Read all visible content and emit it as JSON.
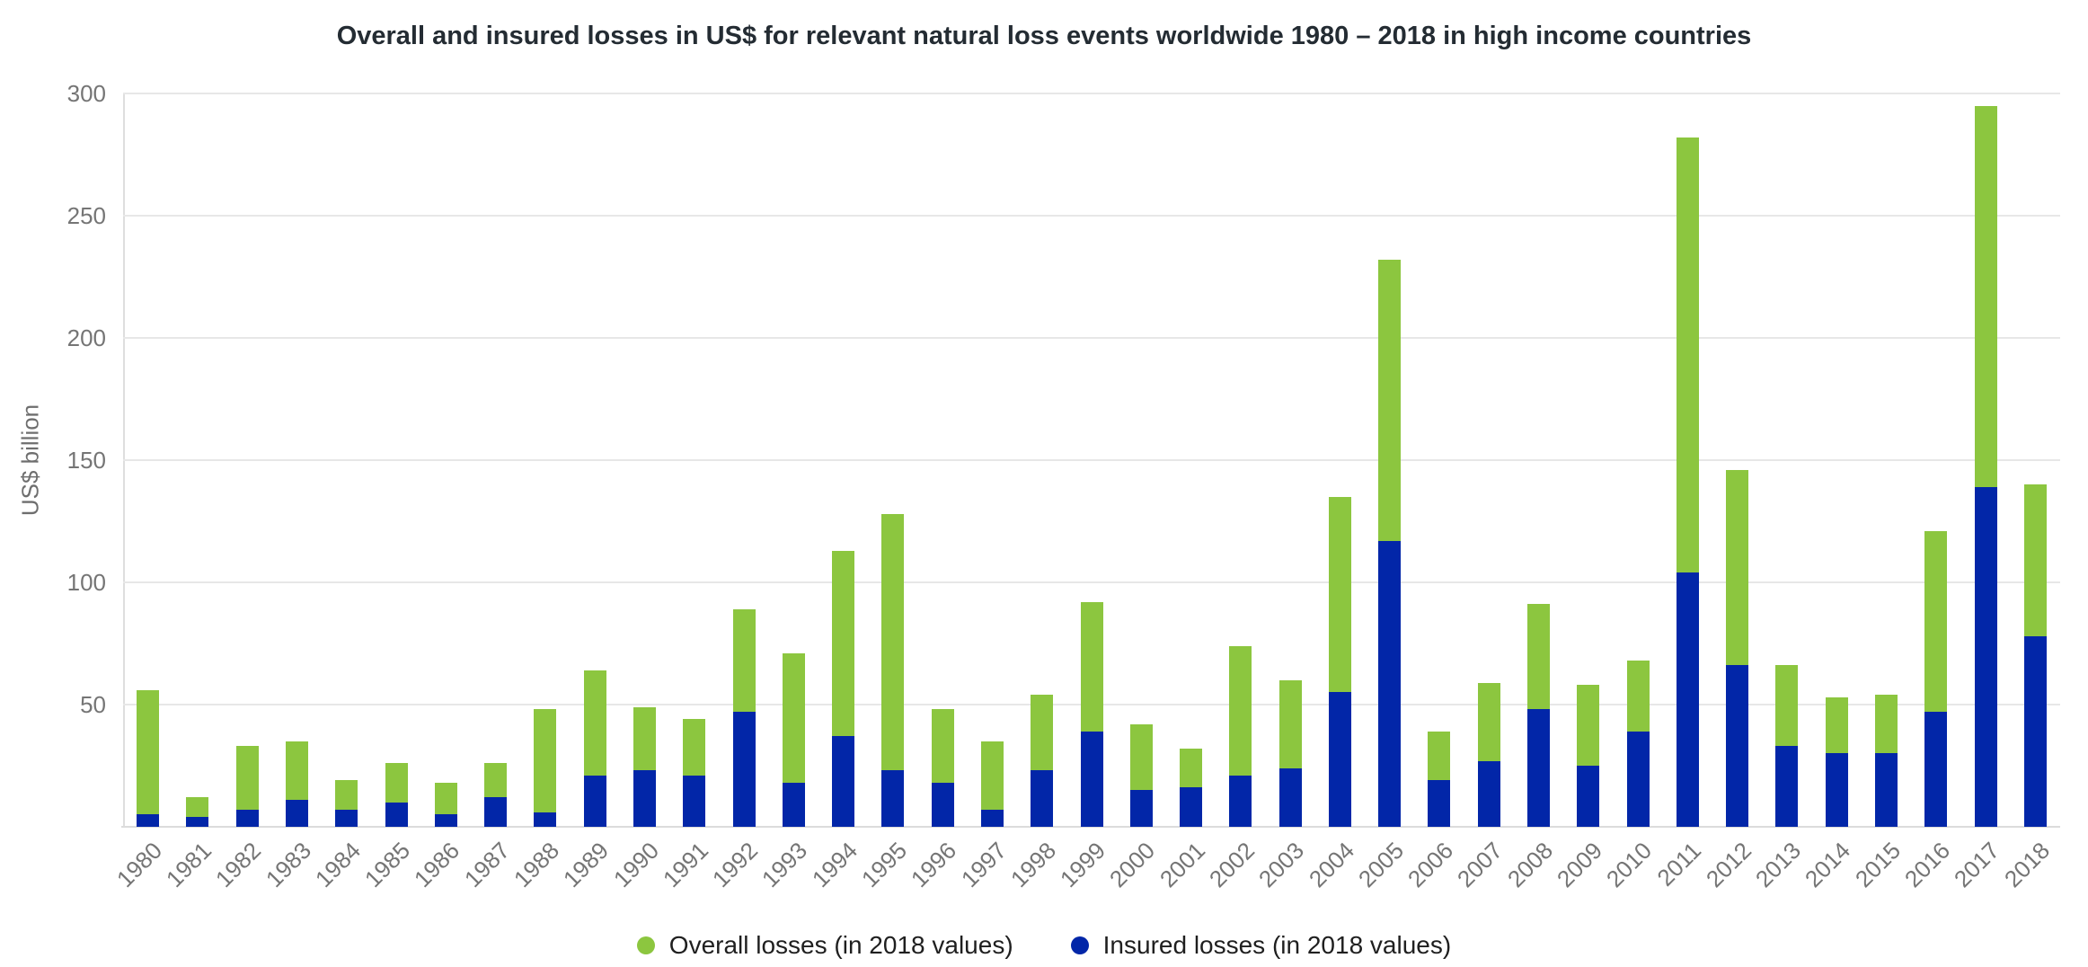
{
  "title": "Overall and insured losses in US$ for relevant natural loss events worldwide 1980 – 2018 in high income countries",
  "y_axis": {
    "label": "US$ billion",
    "ticks": [
      50,
      100,
      150,
      200,
      250,
      300
    ]
  },
  "legend": [
    {
      "label": "Overall losses (in 2018 values)",
      "color": "#8CC63F"
    },
    {
      "label": "Insured losses (in 2018 values)",
      "color": "#0226A8"
    }
  ],
  "colors": {
    "overall_green": "#8CC63F",
    "insured_blue": "#0226A8",
    "gridline": "#E7E7E7",
    "axis_line": "#DCDCDC",
    "tick_text": "#757575",
    "title_text": "#242C33",
    "legend_text": "#1F1F1F"
  },
  "chart_data": {
    "type": "bar",
    "stacked": true,
    "title": "Overall and insured losses in US$ for relevant natural loss events worldwide 1980 – 2018 in high income countries",
    "xlabel": "",
    "ylabel": "US$ billion",
    "ylim": [
      0,
      300
    ],
    "grid": true,
    "legend_position": "bottom",
    "categories": [
      1980,
      1981,
      1982,
      1983,
      1984,
      1985,
      1986,
      1987,
      1988,
      1989,
      1990,
      1991,
      1992,
      1993,
      1994,
      1995,
      1996,
      1997,
      1998,
      1999,
      2000,
      2001,
      2002,
      2003,
      2004,
      2005,
      2006,
      2007,
      2008,
      2009,
      2010,
      2011,
      2012,
      2013,
      2014,
      2015,
      2016,
      2017,
      2018
    ],
    "series": [
      {
        "name": "Overall losses (in 2018 values)",
        "color": "#8CC63F",
        "role": "total_bar_height",
        "note": "green segment drawn from insured value up to overall value",
        "values": [
          56,
          12,
          33,
          35,
          19,
          26,
          18,
          26,
          48,
          64,
          49,
          44,
          89,
          71,
          113,
          128,
          48,
          35,
          54,
          92,
          42,
          32,
          74,
          60,
          135,
          232,
          39,
          59,
          91,
          58,
          68,
          282,
          146,
          66,
          53,
          54,
          121,
          295,
          140
        ]
      },
      {
        "name": "Insured losses (in 2018 values)",
        "color": "#0226A8",
        "role": "bottom_segment",
        "values": [
          5,
          4,
          7,
          11,
          7,
          10,
          5,
          12,
          6,
          21,
          23,
          21,
          47,
          18,
          37,
          23,
          18,
          7,
          23,
          39,
          15,
          16,
          21,
          24,
          55,
          117,
          19,
          27,
          48,
          25,
          39,
          104,
          66,
          33,
          30,
          30,
          47,
          139,
          78
        ]
      }
    ]
  }
}
